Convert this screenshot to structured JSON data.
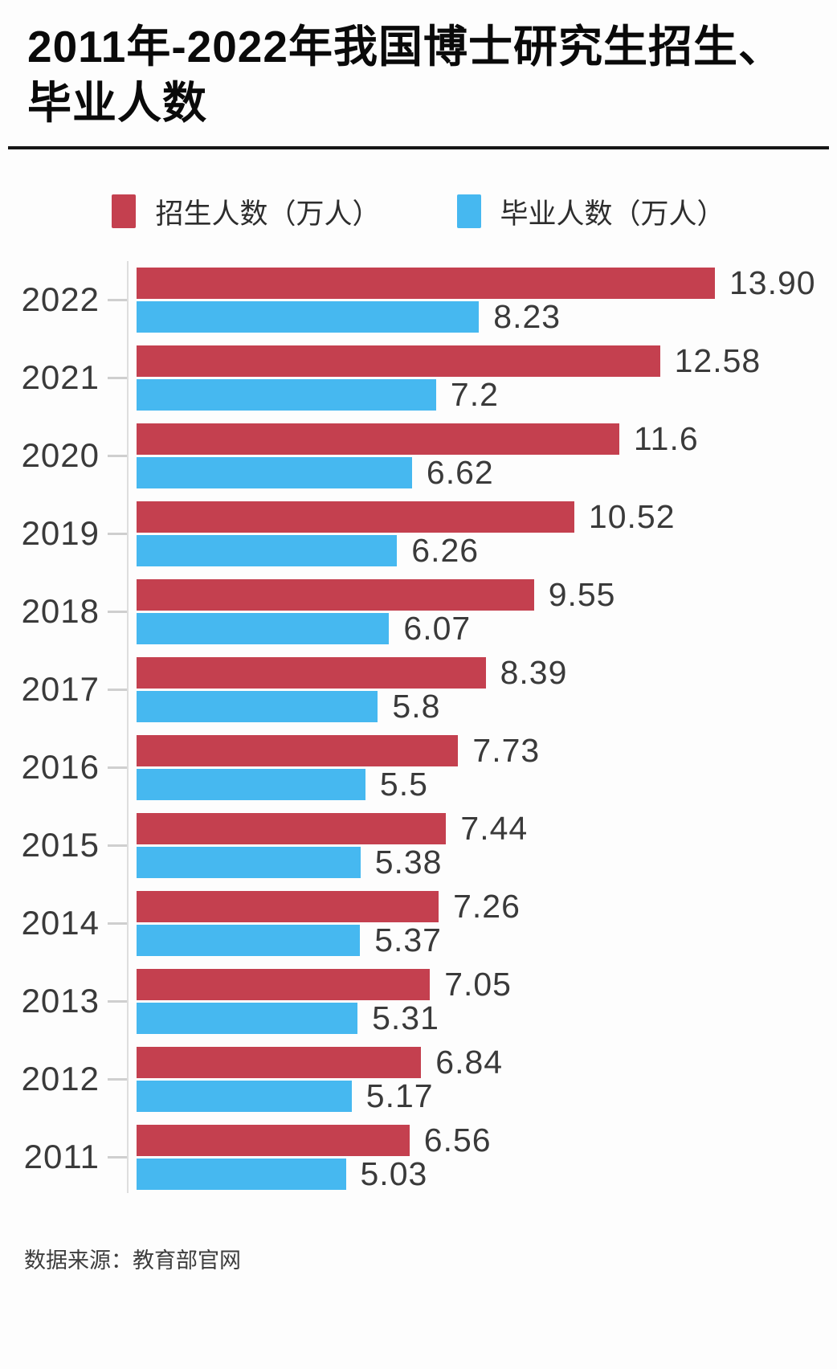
{
  "chart_data": {
    "type": "bar",
    "orientation": "horizontal",
    "title": "2011年-2022年我国博士研究生招生、毕业人数",
    "categories": [
      "2022",
      "2021",
      "2020",
      "2019",
      "2018",
      "2017",
      "2016",
      "2015",
      "2014",
      "2013",
      "2012",
      "2011"
    ],
    "series": [
      {
        "name": "招生人数（万人）",
        "color": "#c4404f",
        "values": [
          13.9,
          12.58,
          11.6,
          10.52,
          9.55,
          8.39,
          7.73,
          7.44,
          7.26,
          7.05,
          6.84,
          6.56
        ],
        "labels": [
          "13.90",
          "12.58",
          "11.6",
          "10.52",
          "9.55",
          "8.39",
          "7.73",
          "7.44",
          "7.26",
          "7.05",
          "6.84",
          "6.56"
        ]
      },
      {
        "name": "毕业人数（万人）",
        "color": "#46b8f0",
        "values": [
          8.23,
          7.2,
          6.62,
          6.26,
          6.07,
          5.8,
          5.5,
          5.38,
          5.37,
          5.31,
          5.17,
          5.03
        ],
        "labels": [
          "8.23",
          "7.2",
          "6.62",
          "6.26",
          "6.07",
          "5.8",
          "5.5",
          "5.38",
          "5.37",
          "5.31",
          "5.17",
          "5.03"
        ]
      }
    ],
    "x_max": 13.9,
    "xlim": [
      0,
      13.9
    ],
    "grid": false,
    "legend_position": "top",
    "source": "数据来源：教育部官网"
  }
}
